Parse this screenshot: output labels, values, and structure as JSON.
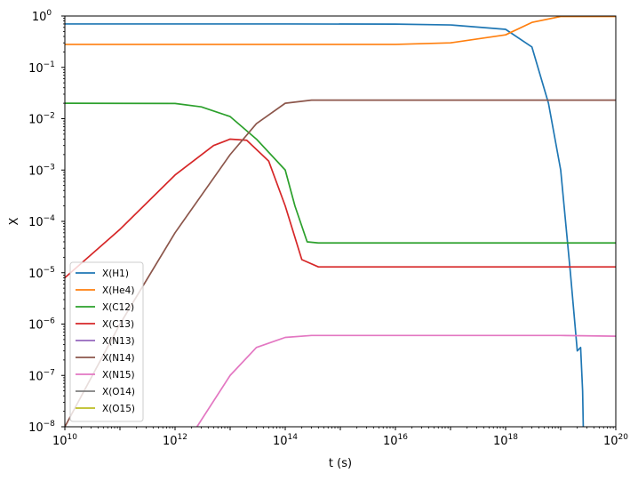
{
  "chart_data": {
    "type": "line",
    "title": "",
    "xlabel": "t (s)",
    "ylabel": "X",
    "xscale": "log",
    "yscale": "log",
    "xlim": [
      10000000000.0,
      1e+20
    ],
    "ylim": [
      1e-08,
      1
    ],
    "grid": false,
    "legend_position": "lower-left",
    "x_ticks": [
      {
        "value": 10000000000.0,
        "base": "10",
        "exp": "10"
      },
      {
        "value": 1000000000000.0,
        "base": "10",
        "exp": "12"
      },
      {
        "value": 100000000000000.0,
        "base": "10",
        "exp": "14"
      },
      {
        "value": 1e+16,
        "base": "10",
        "exp": "16"
      },
      {
        "value": 1e+18,
        "base": "10",
        "exp": "18"
      },
      {
        "value": 1e+20,
        "base": "10",
        "exp": "20"
      }
    ],
    "y_ticks": [
      {
        "value": 1e-08,
        "base": "10",
        "exp": "−8"
      },
      {
        "value": 1e-07,
        "base": "10",
        "exp": "−7"
      },
      {
        "value": 1e-06,
        "base": "10",
        "exp": "−6"
      },
      {
        "value": 1e-05,
        "base": "10",
        "exp": "−5"
      },
      {
        "value": 0.0001,
        "base": "10",
        "exp": "−4"
      },
      {
        "value": 0.001,
        "base": "10",
        "exp": "−3"
      },
      {
        "value": 0.01,
        "base": "10",
        "exp": "−2"
      },
      {
        "value": 0.1,
        "base": "10",
        "exp": "−1"
      },
      {
        "value": 1,
        "base": "10",
        "exp": "0"
      }
    ],
    "series": [
      {
        "name": "X(H1)",
        "color": "#1f77b4",
        "points": [
          [
            10000000000.0,
            0.7
          ],
          [
            100000000000000.0,
            0.7
          ],
          [
            1e+16,
            0.695
          ],
          [
            1e+17,
            0.67
          ],
          [
            1e+18,
            0.55
          ],
          [
            3e+18,
            0.25
          ],
          [
            6e+18,
            0.02
          ],
          [
            1e+19,
            0.001
          ],
          [
            1.5e+19,
            1e-05
          ],
          [
            2e+19,
            3e-07
          ],
          [
            2.3e+19,
            3.5e-07
          ],
          [
            2.5e+19,
            5e-08
          ],
          [
            2.6e+19,
            5e-09
          ]
        ]
      },
      {
        "name": "X(He4)",
        "color": "#ff7f0e",
        "points": [
          [
            10000000000.0,
            0.28
          ],
          [
            1e+16,
            0.28
          ],
          [
            1e+17,
            0.3
          ],
          [
            1e+18,
            0.43
          ],
          [
            3e+18,
            0.75
          ],
          [
            1e+19,
            0.98
          ],
          [
            1e+20,
            0.98
          ]
        ]
      },
      {
        "name": "X(C12)",
        "color": "#2ca02c",
        "points": [
          [
            10000000000.0,
            0.02
          ],
          [
            1000000000000.0,
            0.0198
          ],
          [
            3000000000000.0,
            0.017
          ],
          [
            10000000000000.0,
            0.011
          ],
          [
            30000000000000.0,
            0.004
          ],
          [
            100000000000000.0,
            0.001
          ],
          [
            150000000000000.0,
            0.0002
          ],
          [
            250000000000000.0,
            4e-05
          ],
          [
            400000000000000.0,
            3.8e-05
          ],
          [
            1000000000000000.0,
            3.8e-05
          ],
          [
            1e+19,
            3.8e-05
          ],
          [
            1e+20,
            3.8e-05
          ]
        ]
      },
      {
        "name": "X(C13)",
        "color": "#d62728",
        "points": [
          [
            10000000000.0,
            8e-06
          ],
          [
            100000000000.0,
            7e-05
          ],
          [
            1000000000000.0,
            0.0008
          ],
          [
            5000000000000.0,
            0.003
          ],
          [
            10000000000000.0,
            0.004
          ],
          [
            20000000000000.0,
            0.0038
          ],
          [
            50000000000000.0,
            0.0015
          ],
          [
            100000000000000.0,
            0.0002
          ],
          [
            200000000000000.0,
            1.8e-05
          ],
          [
            400000000000000.0,
            1.3e-05
          ],
          [
            1000000000000000.0,
            1.3e-05
          ],
          [
            1e+19,
            1.3e-05
          ],
          [
            1e+20,
            1.3e-05
          ]
        ]
      },
      {
        "name": "X(N13)",
        "color": "#9467bd",
        "points": []
      },
      {
        "name": "X(N14)",
        "color": "#8c564b",
        "points": [
          [
            10000000000.0,
            1e-08
          ],
          [
            100000000000.0,
            1e-06
          ],
          [
            1000000000000.0,
            6e-05
          ],
          [
            10000000000000.0,
            0.002
          ],
          [
            30000000000000.0,
            0.008
          ],
          [
            100000000000000.0,
            0.02
          ],
          [
            300000000000000.0,
            0.023
          ],
          [
            1e+20,
            0.023
          ]
        ]
      },
      {
        "name": "X(N15)",
        "color": "#e377c2",
        "points": [
          [
            2500000000000.0,
            1e-08
          ],
          [
            10000000000000.0,
            1e-07
          ],
          [
            30000000000000.0,
            3.5e-07
          ],
          [
            100000000000000.0,
            5.5e-07
          ],
          [
            300000000000000.0,
            6e-07
          ],
          [
            1e+18,
            6e-07
          ],
          [
            1e+19,
            6e-07
          ],
          [
            1e+20,
            5.8e-07
          ]
        ]
      },
      {
        "name": "X(O14)",
        "color": "#7f7f7f",
        "points": []
      },
      {
        "name": "X(O15)",
        "color": "#bcbd22",
        "points": []
      }
    ]
  }
}
